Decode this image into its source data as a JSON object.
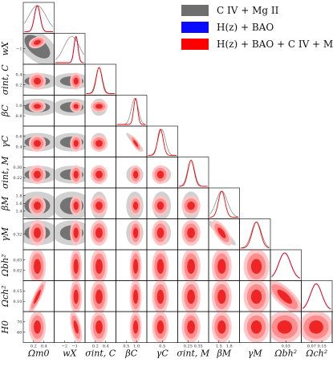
{
  "chart_data": {
    "type": "corner",
    "parameters": [
      {
        "key": "Om",
        "label": "Ωm0",
        "range": [
          0.1,
          0.5
        ],
        "ticks": [
          "0.2",
          "0.4"
        ]
      },
      {
        "key": "wX",
        "label": "wX",
        "range": [
          -2.4,
          -0.4
        ],
        "ticks": [
          "−2",
          "−1"
        ]
      },
      {
        "key": "sigC",
        "label": "σint, C",
        "range": [
          0.1,
          0.5
        ],
        "ticks": [
          "0.2",
          "0.4"
        ]
      },
      {
        "key": "betaC",
        "label": "βC",
        "range": [
          0.3,
          1.3
        ],
        "ticks": [
          "0.5",
          "1.0"
        ]
      },
      {
        "key": "gammaC",
        "label": "γC",
        "range": [
          0.28,
          0.74
        ],
        "ticks": [
          "0.5"
        ]
      },
      {
        "key": "sigM",
        "label": "σint, M",
        "range": [
          0.19,
          0.39
        ],
        "ticks": [
          "0.25",
          "0.35"
        ]
      },
      {
        "key": "betaM",
        "label": "βM",
        "range": [
          1.35,
          1.95
        ],
        "ticks": [
          "1.5",
          "1.8"
        ]
      },
      {
        "key": "gammaM",
        "label": "γM",
        "range": [
          0.22,
          0.42
        ],
        "ticks": []
      },
      {
        "key": "obh2",
        "label": "Ωbh²",
        "range": [
          0.018,
          0.042
        ],
        "ticks": [
          "0.03"
        ]
      },
      {
        "key": "och2",
        "label": "Ωch²",
        "range": [
          0.045,
          0.17
        ],
        "ticks": [
          "0.07",
          "0.15"
        ]
      },
      {
        "key": "H0",
        "label": "H0",
        "range": [
          57,
          73
        ],
        "ticks": [
          "60",
          "70"
        ]
      }
    ],
    "y_ticks": {
      "wX": [
        "−1"
      ],
      "sigC": [
        "0.2",
        "0.4"
      ],
      "betaC": [
        "0.8",
        "1.0"
      ],
      "gammaC": [
        "0.4",
        "0.6"
      ],
      "sigM": [
        "0.22",
        "0.30"
      ],
      "betaM": [
        "1.4",
        "1.6",
        "1.8"
      ],
      "gammaM": [
        "0.32"
      ],
      "obh2": [
        "0.02",
        "0.03"
      ],
      "och2": [
        "0.10",
        "0.15"
      ],
      "H0": [
        "60",
        "70"
      ]
    },
    "series": [
      {
        "name": "C IV + Mg II",
        "color": "#6e6e6e",
        "fill_levels": [
          "#cfcfcf",
          "#6e6e6e"
        ],
        "params": [
          "Om",
          "wX",
          "sigC",
          "betaC",
          "gammaC",
          "sigM",
          "betaM",
          "gammaM"
        ],
        "mean": {
          "Om": 0.28,
          "wX": -1.25,
          "sigC": 0.28,
          "betaC": 0.92,
          "gammaC": 0.5,
          "sigM": 0.275,
          "betaM": 1.6,
          "gammaM": 0.33
        },
        "sigma": {
          "Om": 0.12,
          "wX": 0.55,
          "sigC": 0.045,
          "betaC": 0.12,
          "gammaC": 0.06,
          "sigM": 0.025,
          "betaM": 0.12,
          "gammaM": 0.035
        },
        "corr": [
          [
            "betaC",
            "gammaC",
            -0.92
          ],
          [
            "betaM",
            "gammaM",
            -0.92
          ],
          [
            "Om",
            "wX",
            -0.55
          ]
        ]
      },
      {
        "name": "H(z) + BAO",
        "color": "#0a0aff",
        "fill_levels": [
          "#9aa0ff",
          "#0a0aff"
        ],
        "params": [
          "Om",
          "wX",
          "obh2",
          "och2",
          "H0"
        ],
        "mean": {
          "Om": 0.28,
          "wX": -0.95,
          "obh2": 0.029,
          "och2": 0.105,
          "H0": 65
        },
        "sigma": {
          "Om": 0.04,
          "wX": 0.14,
          "obh2": 0.005,
          "och2": 0.025,
          "H0": 3.0
        },
        "corr": [
          [
            "Om",
            "och2",
            0.88
          ],
          [
            "Om",
            "H0",
            -0.15
          ],
          [
            "wX",
            "H0",
            -0.55
          ],
          [
            "obh2",
            "och2",
            -0.75
          ],
          [
            "obh2",
            "H0",
            0.3
          ],
          [
            "och2",
            "H0",
            0.35
          ],
          [
            "Om",
            "wX",
            0.3
          ]
        ]
      },
      {
        "name": "H(z) + BAO + C IV + Mg II",
        "color": "#ff0000",
        "fill_levels": [
          "#ffc4c4",
          "#ff8a8a",
          "#ee2020"
        ],
        "params": [
          "Om",
          "wX",
          "sigC",
          "betaC",
          "gammaC",
          "sigM",
          "betaM",
          "gammaM",
          "obh2",
          "och2",
          "H0"
        ],
        "mean": {
          "Om": 0.28,
          "wX": -0.95,
          "sigC": 0.28,
          "betaC": 0.95,
          "gammaC": 0.48,
          "sigM": 0.275,
          "betaM": 1.6,
          "gammaM": 0.33,
          "obh2": 0.029,
          "och2": 0.105,
          "H0": 65
        },
        "sigma": {
          "Om": 0.04,
          "wX": 0.14,
          "sigC": 0.04,
          "betaC": 0.07,
          "gammaC": 0.045,
          "sigM": 0.022,
          "betaM": 0.07,
          "gammaM": 0.03,
          "obh2": 0.005,
          "och2": 0.025,
          "H0": 3.0
        },
        "corr": [
          [
            "Om",
            "och2",
            0.88
          ],
          [
            "wX",
            "H0",
            -0.55
          ],
          [
            "obh2",
            "och2",
            -0.75
          ],
          [
            "betaC",
            "gammaC",
            -0.8
          ],
          [
            "betaM",
            "gammaM",
            -0.7
          ],
          [
            "Om",
            "wX",
            0.3
          ]
        ]
      }
    ],
    "legend": {
      "position": "top-right"
    },
    "grid": false
  }
}
